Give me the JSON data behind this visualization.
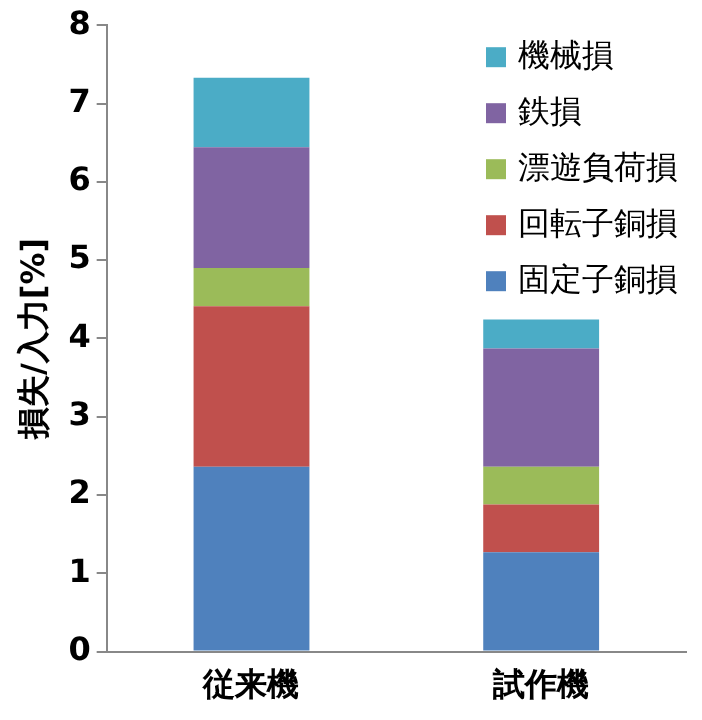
{
  "chart_data": {
    "type": "bar",
    "stacked": true,
    "ylabel": "損失/入力[%]",
    "categories": [
      "従来機",
      "試作機"
    ],
    "series": [
      {
        "name": "固定子銅損",
        "color": "#4f81bd",
        "values": [
          2.36,
          1.27
        ]
      },
      {
        "name": "回転子銅損",
        "color": "#c0504d",
        "values": [
          2.05,
          0.61
        ]
      },
      {
        "name": "漂遊負荷損",
        "color": "#9bbb59",
        "values": [
          0.49,
          0.48
        ]
      },
      {
        "name": "鉄損",
        "color": "#8064a2",
        "values": [
          1.54,
          1.51
        ]
      },
      {
        "name": "機械損",
        "color": "#4bacc6",
        "values": [
          0.89,
          0.37
        ]
      }
    ],
    "ylim": [
      0,
      8
    ],
    "yticks": [
      0,
      1,
      2,
      3,
      4,
      5,
      6,
      7,
      8
    ],
    "grid": false,
    "legend": "top right"
  }
}
